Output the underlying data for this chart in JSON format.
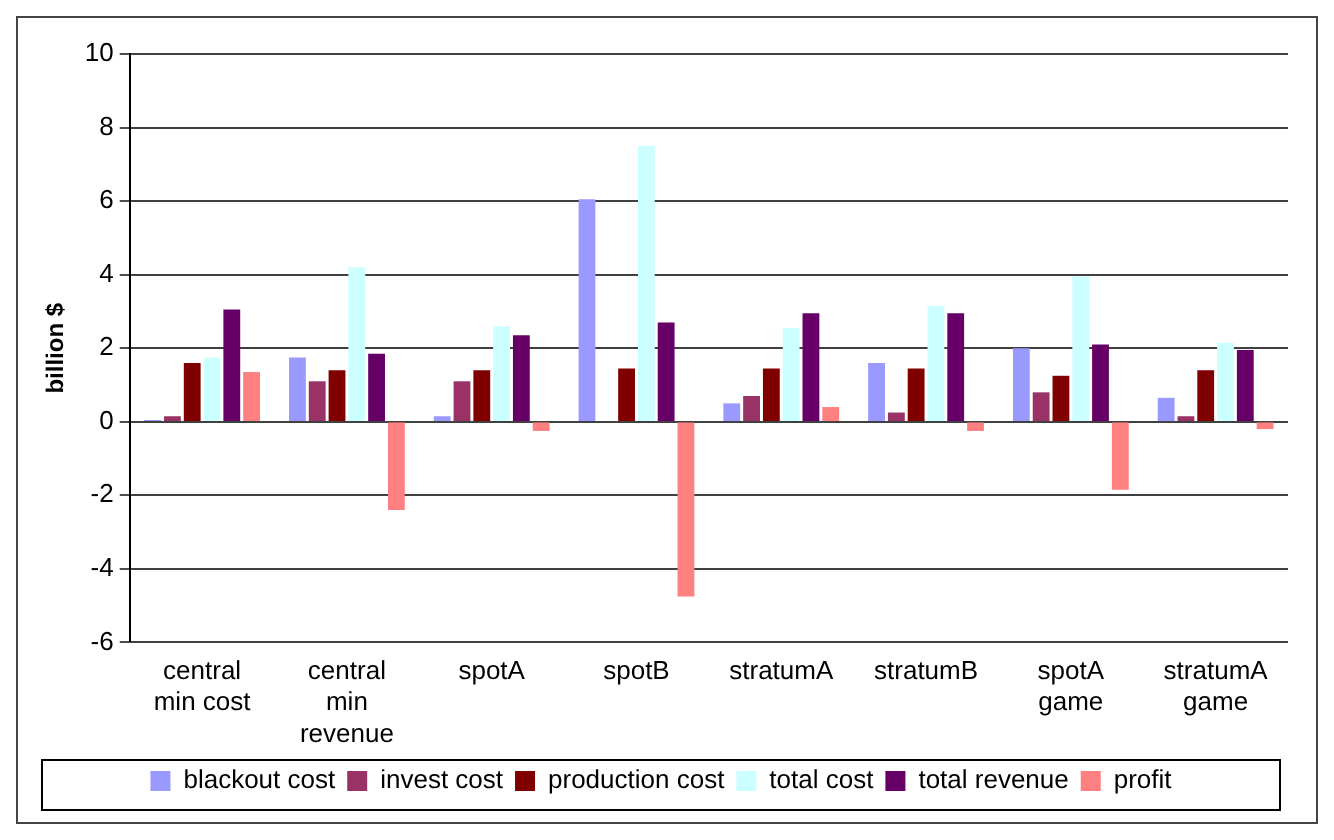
{
  "chart_data": {
    "type": "bar",
    "ylabel": "billion $",
    "categories": [
      "central min cost",
      "central min revenue",
      "spotA",
      "spotB",
      "stratumA",
      "stratumB",
      "spotA game",
      "stratumA game"
    ],
    "series": [
      {
        "name": "blackout cost",
        "color": "#9999ff",
        "values": [
          0.05,
          1.75,
          0.15,
          6.05,
          0.5,
          1.6,
          2.0,
          0.65
        ]
      },
      {
        "name": "invest cost",
        "color": "#993366",
        "values": [
          0.15,
          1.1,
          1.1,
          0,
          0.7,
          0.25,
          0.8,
          0.15
        ]
      },
      {
        "name": "production cost",
        "color": "#800000",
        "values": [
          1.6,
          1.4,
          1.4,
          1.45,
          1.45,
          1.45,
          1.25,
          1.4
        ]
      },
      {
        "name": "total cost",
        "color": "#ccffff",
        "values": [
          1.75,
          4.2,
          2.6,
          7.5,
          2.55,
          3.15,
          3.95,
          2.15
        ]
      },
      {
        "name": "total revenue",
        "color": "#660066",
        "values": [
          3.05,
          1.85,
          2.35,
          2.7,
          2.95,
          2.95,
          2.1,
          1.95
        ]
      },
      {
        "name": "profit",
        "color": "#ff8080",
        "values": [
          1.35,
          -2.4,
          -0.25,
          -4.75,
          0.4,
          -0.25,
          -1.85,
          -0.2
        ]
      }
    ],
    "ylim": [
      -6,
      10
    ],
    "yticks": [
      -6,
      -4,
      -2,
      0,
      2,
      4,
      6,
      8,
      10
    ],
    "grid": "y",
    "legend": "bottom"
  }
}
